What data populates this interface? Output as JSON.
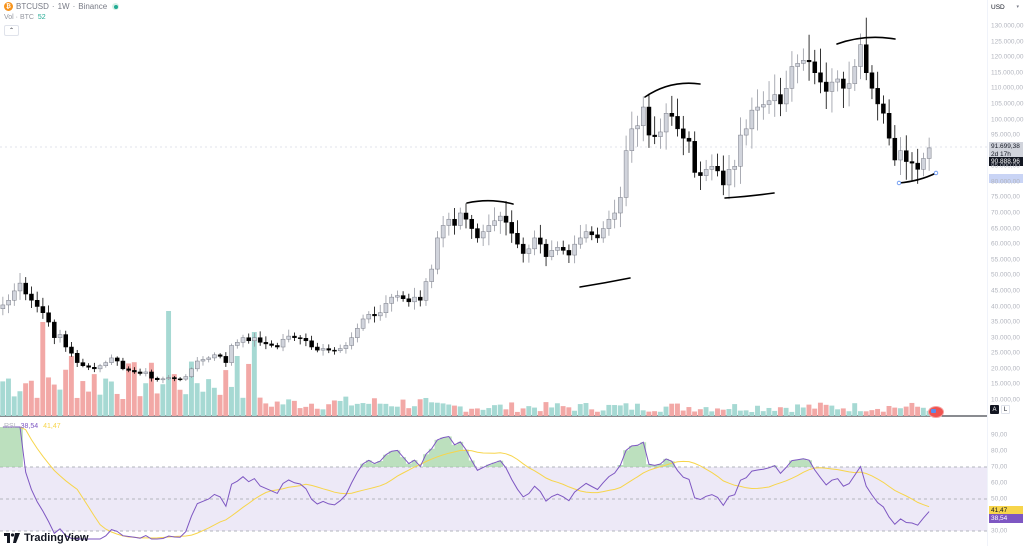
{
  "header": {
    "symbol": "BTCUSD",
    "separator1": "·",
    "interval": "1W",
    "separator2": "·",
    "exchange": "Binance",
    "symbol_icon": "bitcoin-icon",
    "market_status_icon": "live-dot-icon",
    "volume_label": "Vol · BTC",
    "volume_value": "52",
    "collapse_icon": "chevron-up-icon"
  },
  "price_axis": {
    "currency": "USD",
    "labels": [
      "130.000,00",
      "125.000,00",
      "120.000,00",
      "115.000,00",
      "110.000,00",
      "105.000,00",
      "100.000,00",
      "95.000,00",
      "85.000,00",
      "80.000,00",
      "75.000,00",
      "70.000,00",
      "65.000,00",
      "60.000,00",
      "55.000,00",
      "50.000,00",
      "45.000,00",
      "40.000,00",
      "35.000,00",
      "30.000,00",
      "25.000,00",
      "20.000,00",
      "15.000,00",
      "10.000,00"
    ],
    "last_price": "91.699,38",
    "countdown": "2d 17h",
    "current_price": "90.888,96",
    "scale_buttons": {
      "auto": "A",
      "log": "L"
    }
  },
  "rsi": {
    "label": "RSI",
    "value": "38,54",
    "ma_value": "41,47",
    "axis_labels": [
      "90,00",
      "80,00",
      "70,00",
      "60,00",
      "50,00",
      "30,00"
    ],
    "value_tag": "38,54",
    "ma_tag": "41,47",
    "colors": {
      "rsi": "#7e57c2",
      "ma": "#f7d54b",
      "band": "#ede9f7"
    }
  },
  "branding": {
    "name": "TradingView"
  },
  "colors": {
    "up_candle": "#d1d4dc",
    "down_candle": "#000000",
    "vol_up": "#a6d9d3",
    "vol_down": "#f2a8a6",
    "accent": "#2962ff"
  },
  "chart_data": {
    "type": "candlestick",
    "title": "BTCUSD · 1W · Binance",
    "ylabel": "USD",
    "ylim": [
      8000,
      132000
    ],
    "closes": [
      40500,
      42000,
      45000,
      47500,
      44000,
      42000,
      40000,
      38000,
      35000,
      30000,
      31000,
      27000,
      25000,
      22000,
      21000,
      20500,
      20000,
      21000,
      22000,
      23500,
      22500,
      20000,
      19500,
      19000,
      18500,
      19000,
      17000,
      16500,
      16800,
      17200,
      16800,
      16700,
      17500,
      20000,
      22500,
      23000,
      23500,
      24500,
      24000,
      22000,
      27500,
      28500,
      30000,
      29000,
      30000,
      28500,
      28000,
      27500,
      27000,
      29500,
      30500,
      30000,
      29800,
      29000,
      27000,
      26000,
      26500,
      26000,
      25800,
      26500,
      27500,
      30000,
      33000,
      36000,
      37500,
      37000,
      38000,
      41000,
      43000,
      43500,
      42500,
      41500,
      43000,
      42000,
      48000,
      52000,
      62000,
      66000,
      68000,
      66000,
      70000,
      68000,
      65000,
      62000,
      64000,
      66000,
      67500,
      69000,
      67000,
      63500,
      60000,
      57000,
      58500,
      62000,
      60000,
      56000,
      58000,
      59000,
      58000,
      56500,
      60000,
      62000,
      64000,
      63000,
      62000,
      65000,
      68000,
      70000,
      75000,
      90000,
      97000,
      98000,
      104000,
      95000,
      94500,
      96000,
      102000,
      101000,
      97000,
      94000,
      93000,
      83000,
      82000,
      84000,
      85000,
      83500,
      79000,
      84000,
      85000,
      95000,
      97000,
      103000,
      104000,
      104800,
      106000,
      108000,
      105000,
      110000,
      117000,
      118000,
      119000,
      118500,
      115000,
      112000,
      109000,
      112000,
      113000,
      110000,
      111500,
      117000,
      124000,
      115000,
      110000,
      105000,
      102000,
      94000,
      87000,
      90000,
      86500,
      86000,
      84000,
      87500,
      90888
    ],
    "rsi_note": "RSI(14) oscillating 30-90, overbought fill above 70 (green), band 30-70 shaded",
    "annotations": [
      "hand-drawn arc over ~Mar 2024 high",
      "arc under ~Sep 2024 low",
      "arc over ~Dec 2024 high",
      "arc under ~Apr 2025 low",
      "arc over ~Oct 2025 high",
      "arc under current low ~80k"
    ]
  }
}
